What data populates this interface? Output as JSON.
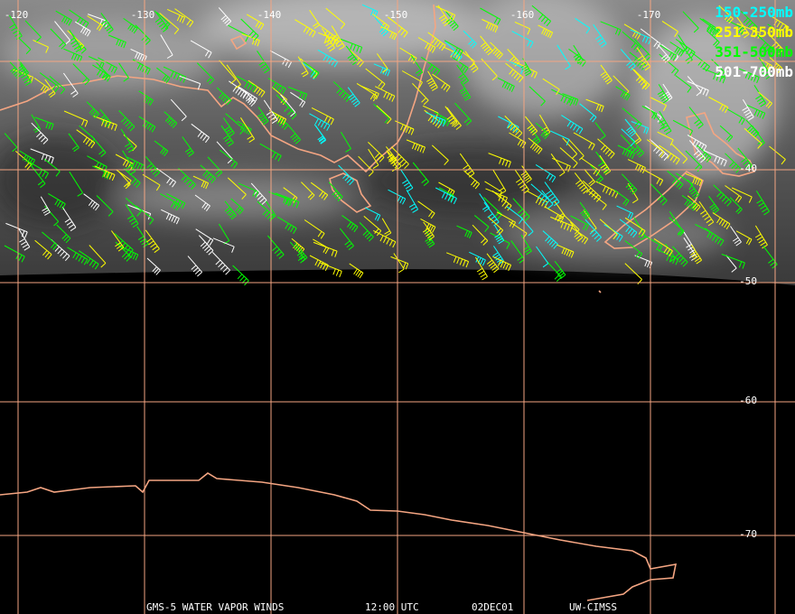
{
  "map": {
    "longitude_labels": [
      "-120",
      "-130",
      "-140",
      "-150",
      "-160",
      "-170"
    ],
    "latitude_labels": [
      "-40",
      "-50",
      "-60",
      "-70"
    ],
    "legend": [
      {
        "label": "150-250mb",
        "color": "#00ffff"
      },
      {
        "label": "251-350mb",
        "color": "#ffff00"
      },
      {
        "label": "351-500mb",
        "color": "#00ff00"
      },
      {
        "label": "501-700mb",
        "color": "#ffffff"
      }
    ],
    "grid_color": "#f4a582",
    "footer": {
      "satellite": "GMS-5 WATER VAPOR WINDS",
      "time": "12:00 UTC",
      "date": "02DEC01",
      "source": "UW-CIMSS"
    }
  }
}
